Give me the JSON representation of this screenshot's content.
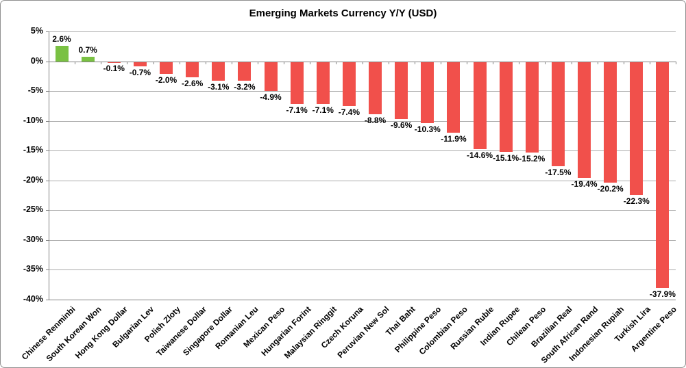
{
  "chart_data": {
    "type": "bar",
    "title": "Emerging Markets Currency Y/Y (USD)",
    "xlabel": "",
    "ylabel": "",
    "categories": [
      "Chinese Renminbi",
      "South Korean Won",
      "Hong Kong Dollar",
      "Bulgarian Lev",
      "Polish Zloty",
      "Taiwanese Dollar",
      "Singapore Dollar",
      "Romanian Leu",
      "Mexican Peso",
      "Hungarian Forint",
      "Malaysian Ringgit",
      "Czech Koruna",
      "Peruvian New Sol",
      "Thai Baht",
      "Philippine Peso",
      "Colombian Peso",
      "Russian Ruble",
      "Indian Rupee",
      "Chilean Peso",
      "Brazilian Real",
      "South African Rand",
      "Indonesian Rupiah",
      "Turkish Lira",
      "Argentine Peso"
    ],
    "values": [
      2.6,
      0.7,
      -0.1,
      -0.7,
      -2.0,
      -2.6,
      -3.1,
      -3.2,
      -4.9,
      -7.1,
      -7.1,
      -7.4,
      -8.8,
      -9.6,
      -10.3,
      -11.9,
      -14.6,
      -15.1,
      -15.2,
      -17.5,
      -19.4,
      -20.2,
      -22.3,
      -37.9
    ],
    "value_labels": [
      "2.6%",
      "0.7%",
      "-0.1%",
      "-0.7%",
      "-2.0%",
      "-2.6%",
      "-3.1%",
      "-3.2%",
      "-4.9%",
      "-7.1%",
      "-7.1%",
      "-7.4%",
      "-8.8%",
      "-9.6%",
      "-10.3%",
      "-11.9%",
      "-14.6%",
      "-15.1%",
      "-15.2%",
      "-17.5%",
      "-19.4%",
      "-20.2%",
      "-22.3%",
      "-37.9%"
    ],
    "y_ticks": [
      5,
      0,
      -5,
      -10,
      -15,
      -20,
      -25,
      -30,
      -35,
      -40
    ],
    "y_tick_labels": [
      "5%",
      "0%",
      "-5%",
      "-10%",
      "-15%",
      "-20%",
      "-25%",
      "-30%",
      "-35%",
      "-40%"
    ],
    "ylim": [
      -40,
      5
    ],
    "grid": true,
    "legend_position": "none",
    "colors": {
      "positive": "#7AC143",
      "negative": "#F1504B"
    }
  }
}
